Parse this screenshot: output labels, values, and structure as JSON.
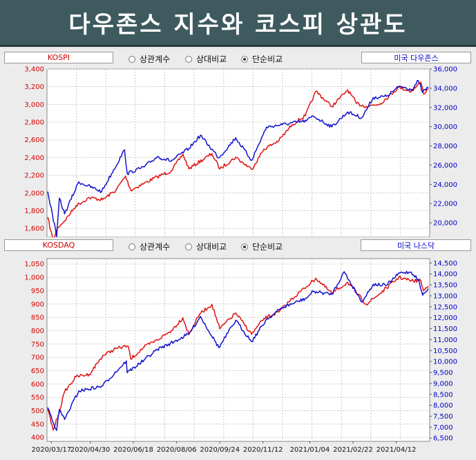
{
  "title": "다우존스 지수와 코스피 상관도",
  "colors": {
    "kr": "#dd1111",
    "us": "#1111cc",
    "title_bg": "#3e5a5e"
  },
  "top_controls": {
    "left_label": "KOSPI",
    "right_label": "미국 다우존스",
    "options": [
      "상관계수",
      "상대비교",
      "단순비교"
    ],
    "selected": "단순비교"
  },
  "bottom_controls": {
    "left_label": "KOSDAQ",
    "right_label": "미국 나스닥",
    "options": [
      "상관계수",
      "상대비교",
      "단순비교"
    ],
    "selected": "단순비교"
  },
  "chart_data": [
    {
      "type": "line",
      "y_left_ticks": [
        "3,400",
        "3,200",
        "3,000",
        "2,800",
        "2,600",
        "2,400",
        "2,200",
        "2,000",
        "1,800",
        "1,600"
      ],
      "y_left_range": [
        1500,
        3400
      ],
      "y_right_ticks": [
        "36,000",
        "34,000",
        "32,000",
        "30,000",
        "28,000",
        "26,000",
        "24,000",
        "22,000",
        "20,000"
      ],
      "y_right_range": [
        18500,
        36000
      ],
      "grid": true,
      "series": [
        {
          "name": "KOSPI",
          "axis": "left",
          "points": [
            [
              "2020-03-13",
              1720
            ],
            [
              "2020-03-19",
              1457
            ],
            [
              "2020-03-24",
              1609
            ],
            [
              "2020-04-01",
              1685
            ],
            [
              "2020-04-14",
              1857
            ],
            [
              "2020-04-29",
              1947
            ],
            [
              "2020-05-14",
              1924
            ],
            [
              "2020-05-29",
              2030
            ],
            [
              "2020-06-09",
              2188
            ],
            [
              "2020-06-15",
              2030
            ],
            [
              "2020-06-30",
              2108
            ],
            [
              "2020-07-15",
              2183
            ],
            [
              "2020-07-31",
              2249
            ],
            [
              "2020-08-13",
              2437
            ],
            [
              "2020-08-20",
              2274
            ],
            [
              "2020-09-15",
              2443
            ],
            [
              "2020-09-24",
              2272
            ],
            [
              "2020-10-12",
              2403
            ],
            [
              "2020-10-30",
              2267
            ],
            [
              "2020-11-13",
              2494
            ],
            [
              "2020-11-30",
              2591
            ],
            [
              "2020-12-15",
              2771
            ],
            [
              "2020-12-30",
              2873
            ],
            [
              "2021-01-11",
              3148
            ],
            [
              "2021-01-29",
              2976
            ],
            [
              "2021-02-16",
              3163
            ],
            [
              "2021-02-26",
              3012
            ],
            [
              "2021-03-09",
              2976
            ],
            [
              "2021-03-25",
              3008
            ],
            [
              "2021-04-15",
              3194
            ],
            [
              "2021-04-29",
              3147
            ],
            [
              "2021-05-10",
              3249
            ],
            [
              "2021-05-13",
              3122
            ],
            [
              "2021-05-18",
              3173
            ]
          ]
        },
        {
          "name": "다우존스",
          "axis": "right",
          "points": [
            [
              "2020-03-13",
              23185
            ],
            [
              "2020-03-23",
              18591
            ],
            [
              "2020-03-26",
              22552
            ],
            [
              "2020-04-01",
              20943
            ],
            [
              "2020-04-17",
              24242
            ],
            [
              "2020-05-13",
              23247
            ],
            [
              "2020-06-08",
              27572
            ],
            [
              "2020-06-11",
              25128
            ],
            [
              "2020-06-30",
              25813
            ],
            [
              "2020-07-15",
              26870
            ],
            [
              "2020-07-31",
              26428
            ],
            [
              "2020-08-20",
              27739
            ],
            [
              "2020-09-02",
              29100
            ],
            [
              "2020-09-23",
              26763
            ],
            [
              "2020-10-12",
              28837
            ],
            [
              "2020-10-30",
              26502
            ],
            [
              "2020-11-16",
              29950
            ],
            [
              "2020-12-04",
              30218
            ],
            [
              "2020-12-31",
              30606
            ],
            [
              "2021-01-08",
              31097
            ],
            [
              "2021-01-29",
              29983
            ],
            [
              "2021-02-16",
              31523
            ],
            [
              "2021-03-04",
              30924
            ],
            [
              "2021-03-17",
              33015
            ],
            [
              "2021-04-01",
              33153
            ],
            [
              "2021-04-16",
              34200
            ],
            [
              "2021-04-30",
              33875
            ],
            [
              "2021-05-07",
              34778
            ],
            [
              "2021-05-12",
              33587
            ],
            [
              "2021-05-18",
              34060
            ]
          ]
        }
      ]
    },
    {
      "type": "line",
      "y_left_ticks": [
        "1,050",
        "1,000",
        "950",
        "900",
        "850",
        "800",
        "750",
        "700",
        "650",
        "600",
        "550",
        "500",
        "450",
        "400"
      ],
      "y_left_range": [
        385,
        1070
      ],
      "y_right_ticks": [
        "14,500",
        "14,000",
        "13,500",
        "13,000",
        "12,500",
        "12,000",
        "11,500",
        "11,000",
        "10,500",
        "10,000",
        "9,500",
        "9,000",
        "8,500",
        "8,000",
        "7,500",
        "7,000",
        "6,500"
      ],
      "y_right_range": [
        6350,
        14700
      ],
      "x_ticks": [
        "2020/03/17",
        "2020/04/30",
        "2020/06/18",
        "2020/08/06",
        "2020/09/24",
        "2020/11/12",
        "2021/01/04",
        "2021/02/22",
        "2021/04/12"
      ],
      "grid": true,
      "series": [
        {
          "name": "KOSDAQ",
          "axis": "left",
          "points": [
            [
              "2020-03-13",
              504
            ],
            [
              "2020-03-19",
              428
            ],
            [
              "2020-03-25",
              485
            ],
            [
              "2020-04-01",
              571
            ],
            [
              "2020-04-14",
              628
            ],
            [
              "2020-04-29",
              636
            ],
            [
              "2020-05-14",
              705
            ],
            [
              "2020-05-29",
              733
            ],
            [
              "2020-06-12",
              742
            ],
            [
              "2020-06-15",
              694
            ],
            [
              "2020-06-30",
              738
            ],
            [
              "2020-07-15",
              765
            ],
            [
              "2020-07-31",
              800
            ],
            [
              "2020-08-13",
              848
            ],
            [
              "2020-08-20",
              786
            ],
            [
              "2020-09-01",
              862
            ],
            [
              "2020-09-15",
              898
            ],
            [
              "2020-09-24",
              807
            ],
            [
              "2020-10-12",
              866
            ],
            [
              "2020-10-30",
              787
            ],
            [
              "2020-11-13",
              845
            ],
            [
              "2020-11-30",
              870
            ],
            [
              "2020-12-15",
              920
            ],
            [
              "2021-01-11",
              996
            ],
            [
              "2021-01-29",
              940
            ],
            [
              "2021-02-16",
              981
            ],
            [
              "2021-03-09",
              899
            ],
            [
              "2021-03-25",
              940
            ],
            [
              "2021-04-15",
              1000
            ],
            [
              "2021-04-29",
              987
            ],
            [
              "2021-05-10",
              987
            ],
            [
              "2021-05-13",
              951
            ],
            [
              "2021-05-18",
              965
            ]
          ]
        },
        {
          "name": "나스닥",
          "axis": "right",
          "points": [
            [
              "2020-03-13",
              7874
            ],
            [
              "2020-03-23",
              6860
            ],
            [
              "2020-03-26",
              7797
            ],
            [
              "2020-04-01",
              7360
            ],
            [
              "2020-04-17",
              8650
            ],
            [
              "2020-05-13",
              8863
            ],
            [
              "2020-06-10",
              10020
            ],
            [
              "2020-06-11",
              9492
            ],
            [
              "2020-06-30",
              10058
            ],
            [
              "2020-07-15",
              10550
            ],
            [
              "2020-08-03",
              10902
            ],
            [
              "2020-08-20",
              11265
            ],
            [
              "2020-09-02",
              12056
            ],
            [
              "2020-09-23",
              10632
            ],
            [
              "2020-10-12",
              11876
            ],
            [
              "2020-10-30",
              10911
            ],
            [
              "2020-11-16",
              11925
            ],
            [
              "2020-12-04",
              12464
            ],
            [
              "2020-12-31",
              12888
            ],
            [
              "2021-01-08",
              13202
            ],
            [
              "2021-01-29",
              13070
            ],
            [
              "2021-02-12",
              14095
            ],
            [
              "2021-03-04",
              12723
            ],
            [
              "2021-03-17",
              13525
            ],
            [
              "2021-04-01",
              13480
            ],
            [
              "2021-04-16",
              14052
            ],
            [
              "2021-04-29",
              14082
            ],
            [
              "2021-05-07",
              13752
            ],
            [
              "2021-05-12",
              13032
            ],
            [
              "2021-05-18",
              13303
            ]
          ]
        }
      ]
    }
  ]
}
